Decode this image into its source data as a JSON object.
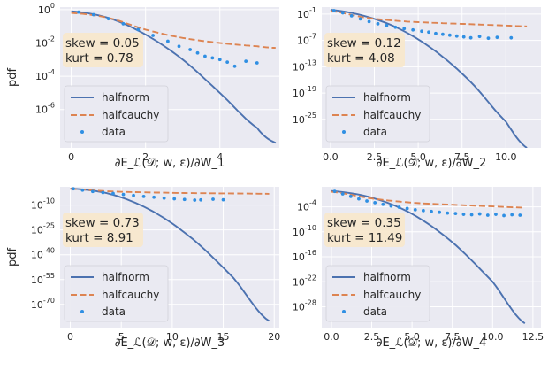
{
  "colors": {
    "background": "#eaeaf2",
    "grid": "#ffffff",
    "halfnorm": "#4c72b0",
    "halfcauchy": "#dd8452",
    "data": "#2f8fe3",
    "stats_box": "#f7e7cc"
  },
  "chart_data": [
    {
      "type": "line",
      "xlabel": "∂E_ℒ(𝒟; w, ε)/∂W_1",
      "ylabel": "pdf",
      "y_scale": "log",
      "xlim": [
        -0.3,
        5.6
      ],
      "ylog_range": [
        -8.3,
        0.15
      ],
      "xticks": [
        0,
        2,
        4
      ],
      "xtick_labels": [
        "0",
        "2",
        "4"
      ],
      "yticks_exp": [
        0,
        -2,
        -4,
        -6
      ],
      "ytick_labels": [
        "0",
        "-2",
        "-4",
        "-6"
      ],
      "stats": {
        "skew": "skew = 0.05",
        "kurt": "kurt = 0.78"
      },
      "series": [
        {
          "name": "halfnorm",
          "style": "solid",
          "x": [
            0,
            1,
            2,
            3,
            4,
            5,
            5.5
          ],
          "log10_y": [
            -0.1,
            -0.5,
            -1.5,
            -3.0,
            -5.0,
            -7.1,
            -8.0
          ]
        },
        {
          "name": "halfcauchy",
          "style": "dashed",
          "x": [
            0,
            1,
            2,
            3,
            4,
            5,
            5.5
          ],
          "log10_y": [
            -0.2,
            -0.5,
            -1.2,
            -1.7,
            -2.0,
            -2.2,
            -2.3
          ]
        },
        {
          "name": "data",
          "style": "markers",
          "x": [
            0.2,
            0.6,
            1.0,
            1.4,
            1.8,
            2.2,
            2.6,
            2.9,
            3.2,
            3.4,
            3.6,
            3.8,
            4.0,
            4.2,
            4.4,
            4.7,
            5.0
          ],
          "log10_y": [
            -0.15,
            -0.3,
            -0.55,
            -0.85,
            -1.2,
            -1.55,
            -1.9,
            -2.2,
            -2.4,
            -2.6,
            -2.8,
            -2.9,
            -3.0,
            -3.15,
            -3.4,
            -3.1,
            -3.2
          ]
        }
      ],
      "legend": {
        "position": "bottom-left",
        "entries": [
          "halfnorm",
          "halfcauchy",
          "data"
        ]
      }
    },
    {
      "type": "line",
      "xlabel": "∂E_ℒ(𝒟; w, ε)/∂W_2",
      "ylabel": "",
      "y_scale": "log",
      "xlim": [
        -0.5,
        12.0
      ],
      "ylog_range": [
        -31.5,
        0.6
      ],
      "xticks": [
        0,
        2.5,
        5,
        7.5,
        10
      ],
      "xtick_labels": [
        "0.0",
        "2.5",
        "5.0",
        "7.5",
        "10.0"
      ],
      "yticks_exp": [
        -1,
        -7,
        -13,
        -19,
        -25
      ],
      "ytick_labels": [
        "-1",
        "-7",
        "-13",
        "-19",
        "-25"
      ],
      "stats": {
        "skew": "skew = 0.12",
        "kurt": "kurt = 4.08"
      },
      "series": [
        {
          "name": "halfnorm",
          "style": "solid",
          "x": [
            0,
            2,
            4,
            6,
            8,
            10,
            11.2
          ],
          "log10_y": [
            0,
            -1.5,
            -4.5,
            -9.5,
            -16.5,
            -25.5,
            -31.5
          ]
        },
        {
          "name": "halfcauchy",
          "style": "dashed",
          "x": [
            0,
            2,
            4,
            6,
            8,
            10,
            11.2
          ],
          "log10_y": [
            -0.3,
            -1.8,
            -2.6,
            -3.0,
            -3.3,
            -3.6,
            -3.8
          ]
        },
        {
          "name": "data",
          "style": "markers",
          "x": [
            0.2,
            0.7,
            1.2,
            1.7,
            2.2,
            2.7,
            3.2,
            3.7,
            4.2,
            4.7,
            5.2,
            5.6,
            6.0,
            6.4,
            6.8,
            7.2,
            7.6,
            8.0,
            8.5,
            9.0,
            9.5,
            10.3
          ],
          "log10_y": [
            -0.2,
            -0.7,
            -1.4,
            -2.1,
            -2.7,
            -3.2,
            -3.6,
            -4.0,
            -4.3,
            -4.6,
            -4.9,
            -5.1,
            -5.4,
            -5.6,
            -5.8,
            -6.0,
            -6.2,
            -6.4,
            -6.1,
            -6.5,
            -6.3,
            -6.4
          ]
        }
      ],
      "legend": {
        "position": "bottom-left",
        "entries": [
          "halfnorm",
          "halfcauchy",
          "data"
        ]
      }
    },
    {
      "type": "line",
      "xlabel": "∂E_ℒ(𝒟; w, ε)/∂W_3",
      "ylabel": "pdf",
      "y_scale": "log",
      "xlim": [
        -1.0,
        20.5
      ],
      "ylog_range": [
        -84.0,
        1.0
      ],
      "xticks": [
        0,
        5,
        10,
        15,
        20
      ],
      "xtick_labels": [
        "0",
        "5",
        "10",
        "15",
        "20"
      ],
      "yticks_exp": [
        -10,
        -25,
        -40,
        -55,
        -70
      ],
      "ytick_labels": [
        "-10",
        "-25",
        "-40",
        "-55",
        "-70"
      ],
      "stats": {
        "skew": "skew = 0.73",
        "kurt": "kurt = 8.91"
      },
      "series": [
        {
          "name": "halfnorm",
          "style": "solid",
          "x": [
            0,
            4,
            8,
            12,
            16,
            19.5
          ],
          "log10_y": [
            0,
            -3.5,
            -13.5,
            -30.5,
            -54,
            -80
          ]
        },
        {
          "name": "halfcauchy",
          "style": "dashed",
          "x": [
            0,
            4,
            8,
            12,
            16,
            19.5
          ],
          "log10_y": [
            -0.3,
            -1.8,
            -2.4,
            -2.8,
            -3.0,
            -3.2
          ]
        },
        {
          "name": "data",
          "style": "markers",
          "x": [
            0.3,
            1.2,
            2.2,
            3.2,
            4.2,
            5.2,
            6.2,
            7.2,
            8.2,
            9.2,
            10.2,
            11.2,
            12.2,
            12.8,
            14.0,
            15.0
          ],
          "log10_y": [
            -0.2,
            -1.0,
            -1.8,
            -2.5,
            -3.0,
            -3.6,
            -4.2,
            -4.8,
            -5.3,
            -5.8,
            -6.2,
            -6.6,
            -7.0,
            -6.9,
            -6.5,
            -6.8
          ]
        }
      ],
      "legend": {
        "position": "bottom-left",
        "entries": [
          "halfnorm",
          "halfcauchy",
          "data"
        ]
      }
    },
    {
      "type": "line",
      "xlabel": "∂E_ℒ(𝒟; w, ε)/∂W_4",
      "ylabel": "",
      "y_scale": "log",
      "xlim": [
        -0.6,
        13.0
      ],
      "ylog_range": [
        -33.0,
        0.8
      ],
      "xticks": [
        0,
        2.5,
        5,
        7.5,
        10,
        12.5
      ],
      "xtick_labels": [
        "0.0",
        "2.5",
        "5.0",
        "7.5",
        "10.0",
        "12.5"
      ],
      "yticks_exp": [
        -4,
        -10,
        -16,
        -22,
        -28
      ],
      "ytick_labels": [
        "-4",
        "-10",
        "-16",
        "-22",
        "-28"
      ],
      "stats": {
        "skew": "skew = 0.35",
        "kurt": "kurt = 11.49"
      },
      "series": [
        {
          "name": "halfnorm",
          "style": "solid",
          "x": [
            0,
            2.5,
            5,
            7.5,
            10,
            12
          ],
          "log10_y": [
            -0.2,
            -1.8,
            -5.7,
            -12.5,
            -22,
            -32
          ]
        },
        {
          "name": "halfcauchy",
          "style": "dashed",
          "x": [
            0,
            2.5,
            5,
            7.5,
            10,
            12
          ],
          "log10_y": [
            -0.4,
            -2.0,
            -3.0,
            -3.5,
            -3.9,
            -4.2
          ]
        },
        {
          "name": "data",
          "style": "markers",
          "x": [
            0.2,
            0.7,
            1.2,
            1.7,
            2.2,
            2.7,
            3.2,
            3.7,
            4.2,
            4.7,
            5.2,
            5.7,
            6.2,
            6.7,
            7.2,
            7.7,
            8.2,
            8.7,
            9.2,
            9.7,
            10.2,
            10.7,
            11.2,
            11.7
          ],
          "log10_y": [
            -0.3,
            -0.9,
            -1.5,
            -2.1,
            -2.6,
            -3.0,
            -3.4,
            -3.8,
            -4.1,
            -4.4,
            -4.7,
            -4.9,
            -5.1,
            -5.3,
            -5.5,
            -5.6,
            -5.8,
            -5.9,
            -5.7,
            -6.0,
            -5.8,
            -6.1,
            -5.9,
            -6.0
          ]
        }
      ],
      "legend": {
        "position": "bottom-left",
        "entries": [
          "halfnorm",
          "halfcauchy",
          "data"
        ]
      }
    }
  ]
}
